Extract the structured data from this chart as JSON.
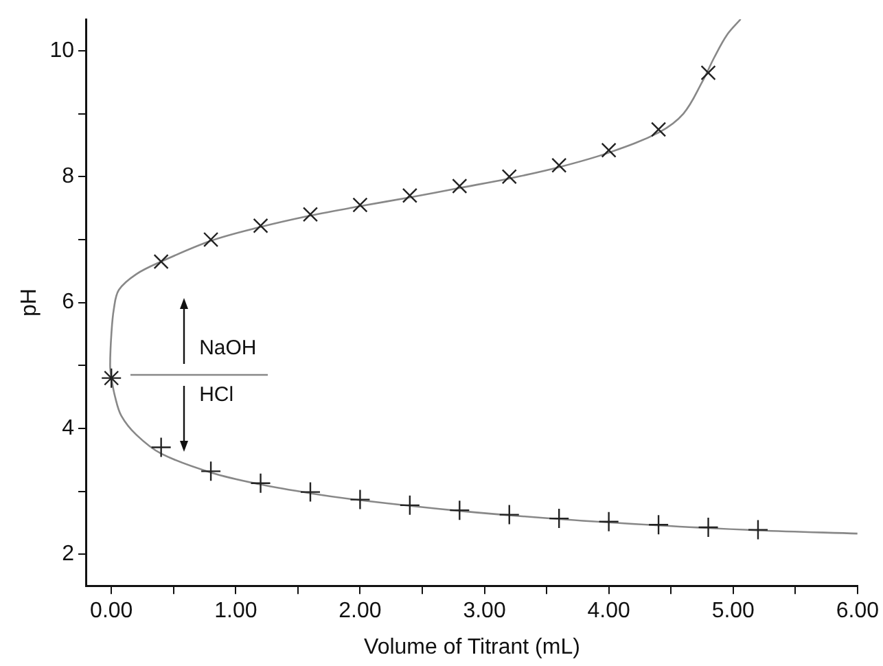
{
  "chart_data": {
    "type": "scatter",
    "xlabel": "Volume of Titrant (mL)",
    "ylabel": "pH",
    "xlim": [
      -0.2,
      6
    ],
    "ylim": [
      1.5,
      10.5
    ],
    "xticks": [
      {
        "value": 0,
        "label": "0.00"
      },
      {
        "value": 0.5,
        "label": null
      },
      {
        "value": 1,
        "label": "1.00"
      },
      {
        "value": 1.5,
        "label": null
      },
      {
        "value": 2,
        "label": "2.00"
      },
      {
        "value": 2.5,
        "label": null
      },
      {
        "value": 3,
        "label": "3.00"
      },
      {
        "value": 3.5,
        "label": null
      },
      {
        "value": 4,
        "label": "4.00"
      },
      {
        "value": 4.5,
        "label": null
      },
      {
        "value": 5,
        "label": "5.00"
      },
      {
        "value": 5.5,
        "label": null
      },
      {
        "value": 6,
        "label": "6.00"
      }
    ],
    "yticks": [
      2,
      {
        "value": 3,
        "label": null
      },
      4,
      {
        "value": 5,
        "label": null
      },
      6,
      {
        "value": 7,
        "label": null
      },
      8,
      {
        "value": 9,
        "label": null
      },
      10
    ],
    "grid": false,
    "legend": false,
    "annotations": [
      "NaOH",
      "HCl"
    ],
    "series": [
      {
        "marker": "cross",
        "color": "#222222",
        "x": [
          0,
          0.4,
          0.8,
          1.2,
          1.6,
          2.0,
          2.4,
          2.8,
          3.2,
          3.6,
          4.0,
          4.4,
          4.8
        ],
        "values": [
          4.8,
          6.65,
          7.0,
          7.22,
          7.4,
          7.55,
          7.7,
          7.85,
          8.0,
          8.18,
          8.42,
          8.75,
          9.65
        ]
      },
      {
        "marker": "cross",
        "color": "#222222",
        "x": [
          0,
          0.4,
          0.8,
          1.2,
          1.6,
          2.0,
          2.4,
          2.8,
          3.2,
          3.6,
          4.0,
          4.4,
          4.8,
          5.2
        ],
        "values": [
          4.8,
          3.7,
          3.32,
          3.13,
          2.99,
          2.87,
          2.78,
          2.7,
          2.63,
          2.57,
          2.52,
          2.47,
          2.43,
          2.39
        ]
      },
      {
        "type": "line",
        "marker": "none",
        "color": "#888888",
        "x": [
          6.0,
          5.2,
          4.4,
          3.6,
          2.8,
          2.0,
          1.6,
          1.2,
          0.8,
          0.4,
          0.2,
          0.08,
          0.03,
          0.0,
          -0.01,
          0.0,
          0.02,
          0.06,
          0.2,
          0.4,
          0.8,
          1.2,
          1.6,
          2.0,
          2.4,
          2.8,
          3.2,
          3.6,
          4.0,
          4.4,
          4.6,
          4.75,
          4.85,
          4.95,
          5.06
        ],
        "values": [
          2.33,
          2.38,
          2.46,
          2.56,
          2.69,
          2.86,
          2.97,
          3.11,
          3.3,
          3.6,
          3.9,
          4.2,
          4.5,
          4.8,
          5.0,
          5.5,
          5.9,
          6.2,
          6.45,
          6.65,
          6.98,
          7.2,
          7.38,
          7.53,
          7.67,
          7.82,
          7.97,
          8.15,
          8.38,
          8.7,
          9.0,
          9.5,
          9.9,
          10.25,
          10.5
        ]
      }
    ]
  }
}
